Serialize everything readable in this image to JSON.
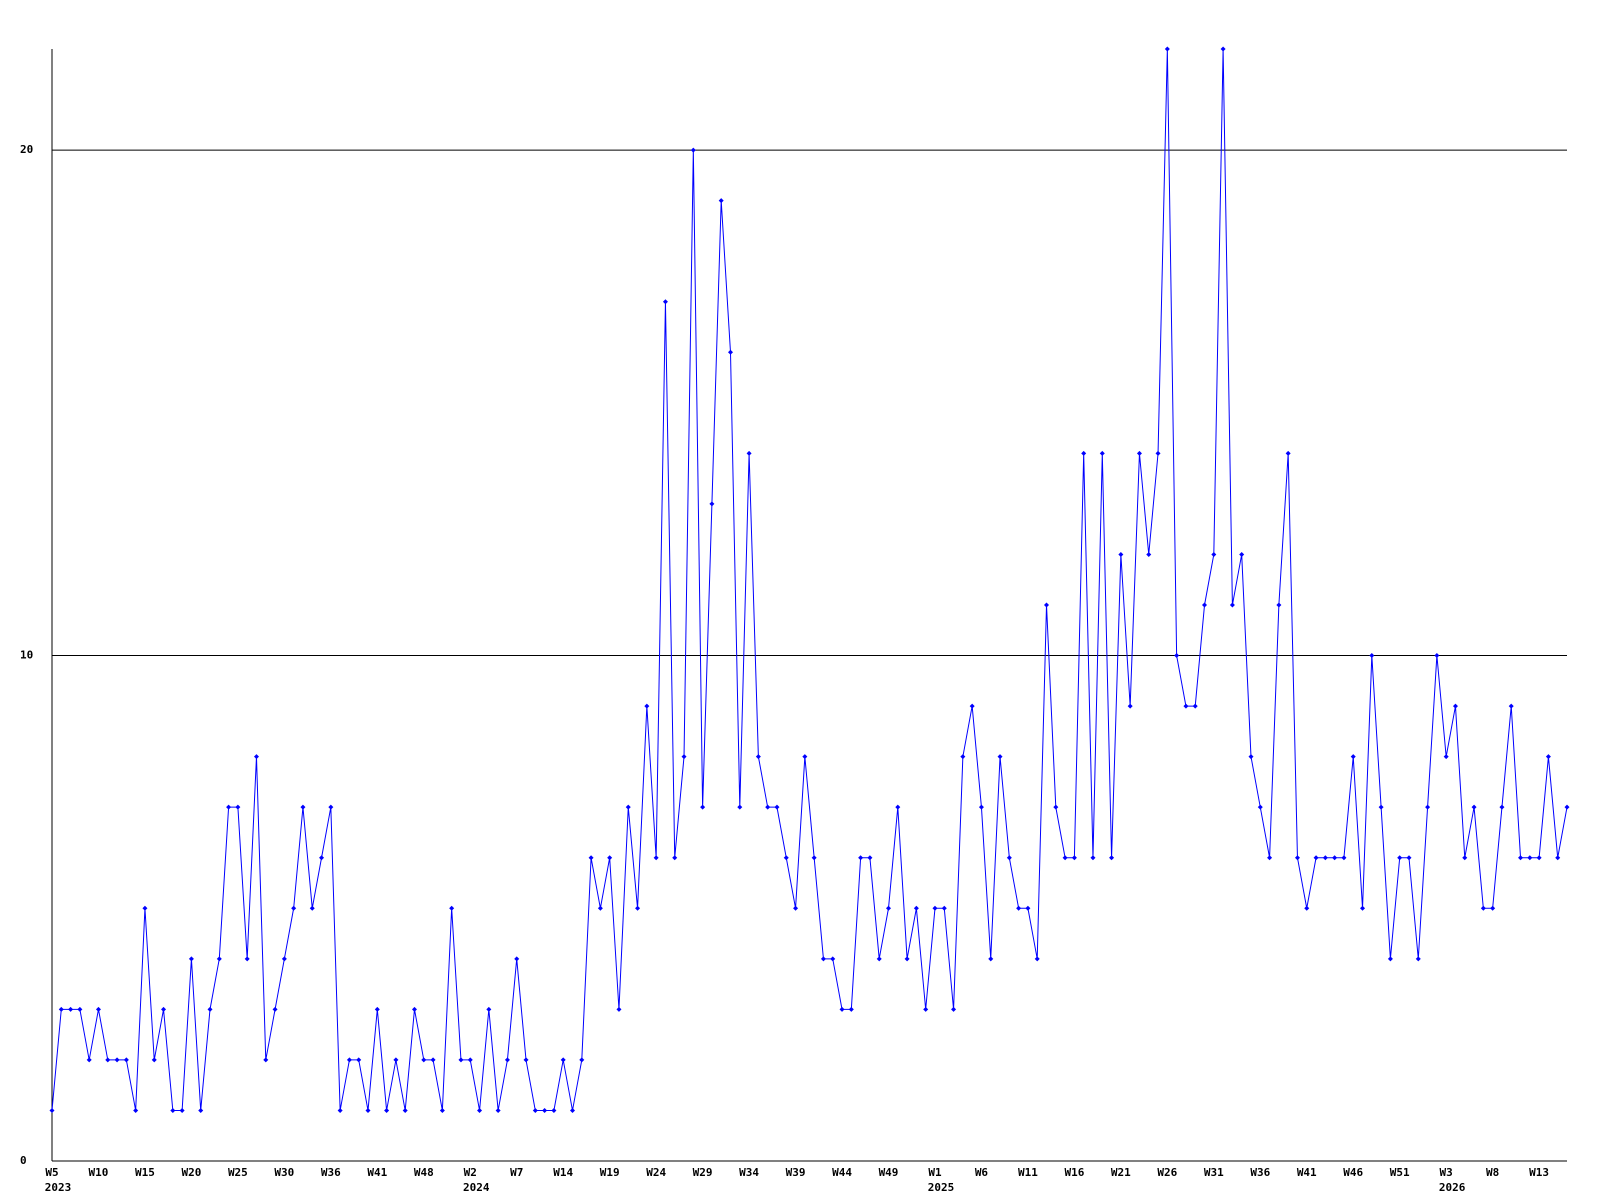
{
  "chart_data": {
    "type": "line",
    "categories": [
      "W5",
      null,
      null,
      null,
      null,
      "W10",
      null,
      null,
      null,
      null,
      "W15",
      null,
      null,
      null,
      null,
      "W20",
      null,
      null,
      null,
      null,
      "W25",
      null,
      null,
      null,
      null,
      "W30",
      null,
      null,
      null,
      null,
      "W36",
      null,
      null,
      null,
      null,
      "W41",
      null,
      null,
      null,
      null,
      "W48",
      null,
      null,
      null,
      null,
      "W2",
      null,
      null,
      null,
      null,
      "W7",
      null,
      null,
      null,
      null,
      "W14",
      null,
      null,
      null,
      null,
      "W19",
      null,
      null,
      null,
      null,
      "W24",
      null,
      null,
      null,
      null,
      "W29",
      null,
      null,
      null,
      null,
      "W34",
      null,
      null,
      null,
      null,
      "W39",
      null,
      null,
      null,
      null,
      "W44",
      null,
      null,
      null,
      null,
      "W49",
      null,
      null,
      null,
      null,
      "W1",
      null,
      null,
      null,
      null,
      "W6",
      null,
      null,
      null,
      null,
      "W11",
      null,
      null,
      null,
      null,
      "W16",
      null,
      null,
      null,
      null,
      "W21",
      null,
      null,
      null,
      null,
      "W26",
      null,
      null,
      null,
      null,
      "W31",
      null,
      null,
      null,
      null,
      "W36",
      null,
      null,
      null,
      null,
      "W41",
      null,
      null,
      null,
      null,
      "W46",
      null,
      null,
      null,
      null,
      "W51",
      null,
      null,
      null,
      null,
      "W3",
      null,
      null,
      null,
      null,
      "W8",
      null,
      null,
      null,
      null,
      "W13",
      null,
      null,
      null
    ],
    "category_years": [
      "2023",
      null,
      null,
      null,
      null,
      null,
      null,
      null,
      null,
      null,
      null,
      null,
      null,
      null,
      null,
      null,
      null,
      null,
      null,
      null,
      null,
      null,
      null,
      null,
      null,
      null,
      null,
      null,
      null,
      null,
      null,
      null,
      null,
      null,
      null,
      null,
      null,
      null,
      null,
      null,
      null,
      null,
      null,
      null,
      null,
      "2024",
      null,
      null,
      null,
      null,
      null,
      null,
      null,
      null,
      null,
      null,
      null,
      null,
      null,
      null,
      null,
      null,
      null,
      null,
      null,
      null,
      null,
      null,
      null,
      null,
      null,
      null,
      null,
      null,
      null,
      null,
      null,
      null,
      null,
      null,
      null,
      null,
      null,
      null,
      null,
      null,
      null,
      null,
      null,
      null,
      null,
      null,
      null,
      null,
      null,
      "2025",
      null,
      null,
      null,
      null,
      null,
      null,
      null,
      null,
      null,
      null,
      null,
      null,
      null,
      null,
      null,
      null,
      null,
      null,
      null,
      null,
      null,
      null,
      null,
      null,
      null,
      null,
      null,
      null,
      null,
      null,
      null,
      null,
      null,
      null,
      null,
      null,
      null,
      null,
      null,
      null,
      null,
      null,
      null,
      null,
      null,
      null,
      null,
      null,
      null,
      null,
      null,
      null,
      null,
      null,
      "2026",
      null,
      null,
      null,
      null,
      null,
      null,
      null,
      null,
      null,
      null,
      null,
      null,
      null
    ],
    "values": [
      1,
      3,
      3,
      3,
      2,
      3,
      2,
      2,
      2,
      1,
      5,
      2,
      3,
      1,
      1,
      4,
      1,
      3,
      4,
      7,
      7,
      4,
      8,
      2,
      3,
      4,
      5,
      7,
      5,
      6,
      7,
      1,
      2,
      2,
      1,
      3,
      1,
      2,
      1,
      3,
      2,
      2,
      1,
      5,
      2,
      2,
      1,
      3,
      1,
      2,
      4,
      2,
      1,
      1,
      1,
      2,
      1,
      2,
      6,
      5,
      6,
      3,
      7,
      5,
      9,
      6,
      17,
      6,
      8,
      20,
      7,
      13,
      19,
      16,
      7,
      14,
      8,
      7,
      7,
      6,
      5,
      8,
      6,
      4,
      4,
      3,
      3,
      6,
      6,
      4,
      5,
      7,
      4,
      5,
      3,
      5,
      5,
      3,
      8,
      9,
      7,
      4,
      8,
      6,
      5,
      5,
      4,
      11,
      7,
      6,
      6,
      14,
      6,
      14,
      6,
      12,
      9,
      14,
      12,
      14,
      22,
      10,
      9,
      9,
      11,
      12,
      22,
      11,
      12,
      8,
      7,
      6,
      11,
      14,
      6,
      5,
      6,
      6,
      6,
      6,
      8,
      5,
      10,
      7,
      4,
      6,
      6,
      4,
      7,
      10,
      8,
      9,
      6,
      7,
      5,
      5,
      7,
      9,
      6,
      6,
      6,
      8,
      6,
      7
    ],
    "color": "#0000ff",
    "ylim": [
      0,
      22
    ],
    "yticks": [
      0,
      10,
      20
    ],
    "grid": true
  }
}
